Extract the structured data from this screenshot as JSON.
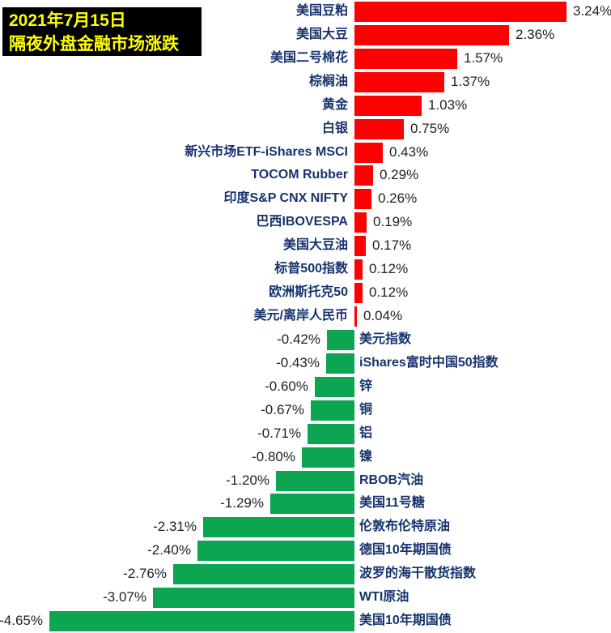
{
  "header": {
    "date_line": "2021年7月15日",
    "title_line": "隔夜外盘金融市场涨跌",
    "bg_color": "#000000",
    "text_color": "#ffff00"
  },
  "chart_data": {
    "type": "bar",
    "orientation": "horizontal",
    "title": "隔夜外盘金融市场涨跌",
    "date": "2021年7月15日",
    "value_unit": "%",
    "xlim": [
      -4.65,
      3.24
    ],
    "grid": false,
    "legend": false,
    "positive_color": "#fe0000",
    "negative_color": "#0ca551",
    "category_label_color": "#16336e",
    "value_label_color": "#1f1f1f",
    "rows": [
      {
        "label": "美国豆粕",
        "value": 3.24,
        "display": "3.24%"
      },
      {
        "label": "美国大豆",
        "value": 2.36,
        "display": "2.36%"
      },
      {
        "label": "美国二号棉花",
        "value": 1.57,
        "display": "1.57%"
      },
      {
        "label": "棕榈油",
        "value": 1.37,
        "display": "1.37%"
      },
      {
        "label": "黄金",
        "value": 1.03,
        "display": "1.03%"
      },
      {
        "label": "白银",
        "value": 0.75,
        "display": "0.75%"
      },
      {
        "label": "新兴市场ETF-iShares MSCI",
        "value": 0.43,
        "display": "0.43%"
      },
      {
        "label": "TOCOM Rubber",
        "value": 0.29,
        "display": "0.29%"
      },
      {
        "label": "印度S&P CNX NIFTY",
        "value": 0.26,
        "display": "0.26%"
      },
      {
        "label": "巴西IBOVESPA",
        "value": 0.19,
        "display": "0.19%"
      },
      {
        "label": "美国大豆油",
        "value": 0.17,
        "display": "0.17%"
      },
      {
        "label": "标普500指数",
        "value": 0.12,
        "display": "0.12%"
      },
      {
        "label": "欧洲斯托克50",
        "value": 0.12,
        "display": "0.12%"
      },
      {
        "label": "美元/离岸人民币",
        "value": 0.04,
        "display": "0.04%"
      },
      {
        "label": "美元指数",
        "value": -0.42,
        "display": "-0.42%"
      },
      {
        "label": "iShares富时中国50指数",
        "value": -0.43,
        "display": "-0.43%"
      },
      {
        "label": "锌",
        "value": -0.6,
        "display": "-0.60%"
      },
      {
        "label": "铜",
        "value": -0.67,
        "display": "-0.67%"
      },
      {
        "label": "铝",
        "value": -0.71,
        "display": "-0.71%"
      },
      {
        "label": "镍",
        "value": -0.8,
        "display": "-0.80%"
      },
      {
        "label": "RBOB汽油",
        "value": -1.2,
        "display": "-1.20%"
      },
      {
        "label": "美国11号糖",
        "value": -1.29,
        "display": "-1.29%"
      },
      {
        "label": "伦敦布伦特原油",
        "value": -2.31,
        "display": "-2.31%"
      },
      {
        "label": "德国10年期国债",
        "value": -2.4,
        "display": "-2.40%"
      },
      {
        "label": "波罗的海干散货指数",
        "value": -2.76,
        "display": "-2.76%"
      },
      {
        "label": "WTI原油",
        "value": -3.07,
        "display": "-3.07%"
      },
      {
        "label": "美国10年期国债",
        "value": -4.65,
        "display": "-4.65%"
      }
    ]
  }
}
